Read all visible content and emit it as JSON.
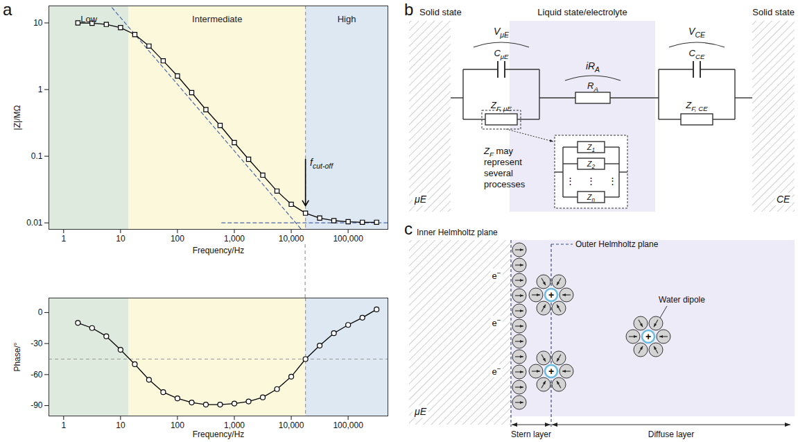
{
  "chart_data": [
    {
      "type": "line",
      "panel_label": "a",
      "xlabel": "Frequency/Hz",
      "ylabel": "|Z|/MΩ",
      "log": true,
      "x": [
        1.78,
        3.16,
        5.62,
        10,
        17.8,
        31.6,
        56.2,
        100,
        178,
        316,
        562,
        1000,
        1780,
        3160,
        5620,
        10000,
        17800,
        31600,
        56200,
        100000,
        178000,
        316000
      ],
      "values": [
        10,
        9.9,
        9.5,
        8.5,
        6.7,
        4.5,
        2.7,
        1.6,
        0.9,
        0.5,
        0.29,
        0.16,
        0.09,
        0.052,
        0.03,
        0.019,
        0.014,
        0.0118,
        0.0108,
        0.0104,
        0.0102,
        0.0102
      ],
      "color": "#000000",
      "marker": "square",
      "xlim": [
        0.55,
        500000
      ],
      "ylim": [
        0.008,
        18
      ],
      "xticks": [
        1,
        10,
        100,
        {
          "value": 1000,
          "label": "1,000"
        },
        {
          "value": 10000,
          "label": "10,000"
        },
        {
          "value": 100000,
          "label": "100,000"
        }
      ],
      "yticks": [
        0.01,
        0.1,
        1,
        10
      ],
      "regions": [
        {
          "label": "Low",
          "from": 0.55,
          "to": 14,
          "color": "#dfeadf"
        },
        {
          "label": "Intermediate",
          "from": 14,
          "to": 17800,
          "color": "#fbf8dc"
        },
        {
          "label": "High",
          "from": 17800,
          "to": 500000,
          "color": "#dde8f3"
        }
      ],
      "reference_lines": [
        {
          "x": [
            6,
            24000
          ],
          "y": [
            20,
            0.005
          ],
          "color": "#4a66a8",
          "line_style": "dashed"
        },
        {
          "x": [
            600,
            500000
          ],
          "y": [
            0.01,
            0.01
          ],
          "color": "#4a66a8",
          "line_style": "dashed"
        },
        {
          "x": 17800,
          "color": "#999999",
          "line_style": "dashed"
        }
      ],
      "annotation": {
        "text": "f",
        "sub": "cut-off",
        "x": 17800,
        "y_start": 0.09,
        "y_end": 0.018
      }
    },
    {
      "type": "line",
      "xlabel": "Frequency/Hz",
      "ylabel": "Phase/°",
      "log": "x",
      "x": [
        1.78,
        3.16,
        5.62,
        10,
        17.8,
        31.6,
        56.2,
        100,
        178,
        316,
        562,
        1000,
        1780,
        3160,
        5620,
        10000,
        17800,
        31600,
        56200,
        100000,
        178000,
        316000
      ],
      "values": [
        -10,
        -15,
        -23,
        -36,
        -50,
        -65,
        -77,
        -83,
        -87,
        -89,
        -89,
        -88,
        -86,
        -82,
        -74,
        -62,
        -45,
        -32,
        -20,
        -12,
        -5,
        3
      ],
      "color": "#000000",
      "marker": "circle",
      "xlim": [
        0.55,
        500000
      ],
      "ylim": [
        -100,
        14
      ],
      "xticks": [
        1,
        10,
        100,
        {
          "value": 1000,
          "label": "1,000"
        },
        {
          "value": 10000,
          "label": "10,000"
        },
        {
          "value": 100000,
          "label": "100,000"
        }
      ],
      "yticks": [
        -90,
        -60,
        -30,
        0
      ],
      "regions": [
        {
          "from": 0.55,
          "to": 14,
          "color": "#dfeadf"
        },
        {
          "from": 14,
          "to": 17800,
          "color": "#fbf8dc"
        },
        {
          "from": 17800,
          "to": 500000,
          "color": "#dde8f3"
        }
      ],
      "reference_lines": [
        {
          "y": -45,
          "color": "#999999",
          "line_style": "dashed"
        },
        {
          "x": 17800,
          "color": "#999999",
          "line_style": "dashed"
        }
      ]
    }
  ],
  "diagrams": {
    "b": {
      "panel_label": "b",
      "headers": [
        "Solid state",
        "Liquid state/electrolyte",
        "Solid state"
      ],
      "electrodes": [
        "μE",
        "CE"
      ],
      "left_element": {
        "voltage": [
          {
            "t": "V"
          },
          {
            "sub": "μE"
          }
        ],
        "capacitor": [
          {
            "t": "C"
          },
          {
            "sub": "μE"
          }
        ],
        "faradaic": [
          {
            "t": "Z"
          },
          {
            "sub": "F, μE"
          }
        ]
      },
      "solution": {
        "drop": [
          {
            "t": "iR"
          },
          {
            "sub": "A"
          }
        ],
        "resistor": [
          {
            "t": "R"
          },
          {
            "sub": "A"
          }
        ]
      },
      "right_element": {
        "voltage": [
          {
            "t": "V"
          },
          {
            "sub": "CE"
          }
        ],
        "capacitor": [
          {
            "t": "C"
          },
          {
            "sub": "CE"
          }
        ],
        "faradaic": [
          {
            "t": "Z"
          },
          {
            "sub": "F, CE"
          }
        ]
      },
      "inset": [
        [
          {
            "t": "Z"
          },
          {
            "sub": "1"
          }
        ],
        [
          {
            "t": "Z"
          },
          {
            "sub": "2"
          }
        ],
        [
          {
            "t": "⋮"
          }
        ],
        [
          {
            "t": "Z"
          },
          {
            "sub": "n"
          }
        ]
      ],
      "note": {
        "symbol": [
          {
            "t": "Z"
          },
          {
            "sub": "F"
          }
        ],
        "text": "may represent several processes"
      }
    },
    "c": {
      "panel_label": "c",
      "planes": [
        "Inner Helmholtz plane",
        "Outer Helmholtz plane"
      ],
      "electrons": [
        [
          {
            "t": "e"
          },
          {
            "sup": "−"
          }
        ],
        [
          {
            "t": "e"
          },
          {
            "sup": "−"
          }
        ],
        [
          {
            "t": "e"
          },
          {
            "sup": "−"
          }
        ]
      ],
      "ion_charge": "+",
      "dipole_label": "Water dipole",
      "electrode": "μE",
      "layers": [
        "Stern layer",
        "Diffuse layer"
      ]
    }
  }
}
